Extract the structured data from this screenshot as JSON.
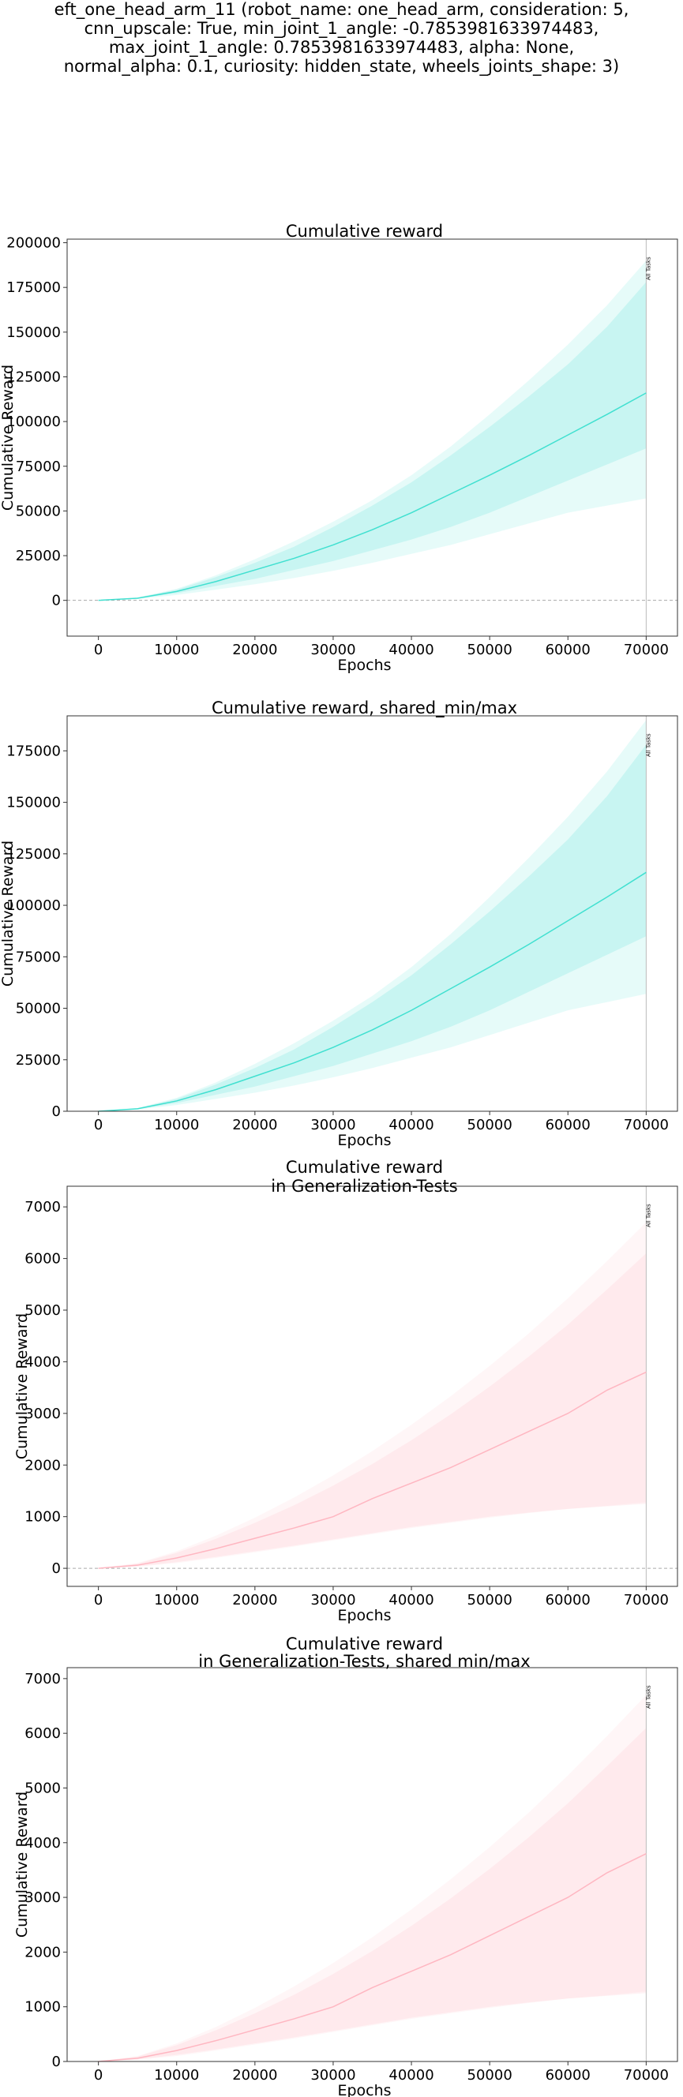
{
  "suptitle_lines": [
    "eft_one_head_arm_11 (robot_name: one_head_arm, consideration: 5,",
    "cnn_upscale: True, min_joint_1_angle: -0.7853981633974483,",
    "max_joint_1_angle: 0.7853981633974483, alpha: None,",
    "normal_alpha: 0.1, curiosity: hidden_state, wheels_joints_shape: 3)"
  ],
  "chart_data": [
    {
      "type": "line",
      "title_lines": [
        "Cumulative reward"
      ],
      "xlabel": "Epochs",
      "ylabel": "Cumulative Reward",
      "xlim": [
        -4000,
        74000
      ],
      "ylim": [
        -20000,
        202000
      ],
      "xticks": [
        0,
        10000,
        20000,
        30000,
        40000,
        50000,
        60000,
        70000
      ],
      "yticks": [
        0,
        25000,
        50000,
        75000,
        100000,
        125000,
        150000,
        175000,
        200000
      ],
      "zero_line": true,
      "vline": {
        "x": 70000,
        "label": "All Tasks"
      },
      "color": "#40E0D0",
      "x": [
        0,
        5000,
        10000,
        15000,
        20000,
        25000,
        30000,
        35000,
        40000,
        45000,
        50000,
        55000,
        60000,
        65000,
        70000
      ],
      "series": [
        {
          "role": "mean",
          "values": [
            0,
            1200,
            5000,
            10500,
            17000,
            23500,
            31000,
            39500,
            49000,
            59500,
            70000,
            81000,
            92500,
            104000,
            116000
          ]
        },
        {
          "role": "inner_low",
          "values": [
            0,
            1000,
            4000,
            8000,
            12000,
            17000,
            22000,
            28000,
            34000,
            41000,
            49000,
            58000,
            67000,
            76000,
            85000
          ]
        },
        {
          "role": "inner_high",
          "values": [
            0,
            1500,
            6000,
            13000,
            21000,
            30000,
            41000,
            53000,
            66000,
            81000,
            97000,
            114000,
            132000,
            153000,
            178000
          ]
        },
        {
          "role": "outer_low",
          "values": [
            0,
            800,
            3000,
            6000,
            9000,
            12500,
            16500,
            21000,
            26000,
            31000,
            37000,
            43000,
            49000,
            53000,
            57000
          ]
        },
        {
          "role": "outer_high",
          "values": [
            0,
            1600,
            6500,
            14000,
            23000,
            33000,
            44000,
            56000,
            70000,
            86000,
            104000,
            123000,
            143000,
            165000,
            190000
          ]
        }
      ]
    },
    {
      "type": "line",
      "title_lines": [
        "Cumulative reward, shared_min/max"
      ],
      "xlabel": "Epochs",
      "ylabel": "Cumulative Reward",
      "xlim": [
        -4000,
        74000
      ],
      "ylim": [
        0,
        192000
      ],
      "xticks": [
        0,
        10000,
        20000,
        30000,
        40000,
        50000,
        60000,
        70000
      ],
      "yticks": [
        0,
        25000,
        50000,
        75000,
        100000,
        125000,
        150000,
        175000
      ],
      "zero_line": false,
      "vline": {
        "x": 70000,
        "label": "All Tasks"
      },
      "color": "#40E0D0",
      "x": [
        0,
        5000,
        10000,
        15000,
        20000,
        25000,
        30000,
        35000,
        40000,
        45000,
        50000,
        55000,
        60000,
        65000,
        70000
      ],
      "series": [
        {
          "role": "mean",
          "values": [
            0,
            1200,
            5000,
            10500,
            17000,
            23500,
            31000,
            39500,
            49000,
            59500,
            70000,
            81000,
            92500,
            104000,
            116000
          ]
        },
        {
          "role": "inner_low",
          "values": [
            0,
            1000,
            4000,
            8000,
            12000,
            17000,
            22000,
            28000,
            34000,
            41000,
            49000,
            58000,
            67000,
            76000,
            85000
          ]
        },
        {
          "role": "inner_high",
          "values": [
            0,
            1500,
            6000,
            13000,
            21000,
            30000,
            41000,
            53000,
            66000,
            81000,
            97000,
            114000,
            132000,
            153000,
            178000
          ]
        },
        {
          "role": "outer_low",
          "values": [
            0,
            800,
            3000,
            6000,
            9000,
            12500,
            16500,
            21000,
            26000,
            31000,
            37000,
            43000,
            49000,
            53000,
            57000
          ]
        },
        {
          "role": "outer_high",
          "values": [
            0,
            1600,
            6500,
            14000,
            23000,
            33000,
            44000,
            56000,
            70000,
            86000,
            104000,
            123000,
            143000,
            165000,
            190000
          ]
        }
      ]
    },
    {
      "type": "line",
      "title_lines": [
        "Cumulative reward",
        "in Generalization-Tests"
      ],
      "xlabel": "Epochs",
      "ylabel": "Cumulative Reward",
      "xlim": [
        -4000,
        74000
      ],
      "ylim": [
        -350,
        7400
      ],
      "xticks": [
        0,
        10000,
        20000,
        30000,
        40000,
        50000,
        60000,
        70000
      ],
      "yticks": [
        0,
        1000,
        2000,
        3000,
        4000,
        5000,
        6000,
        7000
      ],
      "zero_line": true,
      "vline": {
        "x": 70000,
        "label": "All Tasks"
      },
      "color": "#FFB6C1",
      "x": [
        0,
        5000,
        10000,
        15000,
        20000,
        25000,
        30000,
        35000,
        40000,
        45000,
        50000,
        55000,
        60000,
        65000,
        70000
      ],
      "series": [
        {
          "role": "mean",
          "values": [
            0,
            60,
            200,
            380,
            580,
            780,
            1000,
            1350,
            1650,
            1950,
            2300,
            2650,
            3000,
            3450,
            3800
          ]
        },
        {
          "role": "inner_low",
          "values": [
            0,
            40,
            120,
            220,
            330,
            440,
            560,
            680,
            800,
            900,
            1000,
            1080,
            1150,
            1200,
            1250
          ]
        },
        {
          "role": "inner_high",
          "values": [
            0,
            90,
            300,
            570,
            880,
            1220,
            1600,
            2020,
            2480,
            2980,
            3520,
            4100,
            4720,
            5400,
            6100
          ]
        },
        {
          "role": "outer_low",
          "values": [
            0,
            30,
            100,
            200,
            310,
            420,
            540,
            660,
            780,
            880,
            980,
            1070,
            1150,
            1210,
            1280
          ]
        },
        {
          "role": "outer_high",
          "values": [
            0,
            100,
            330,
            630,
            980,
            1370,
            1800,
            2270,
            2780,
            3330,
            3920,
            4550,
            5230,
            5950,
            6700
          ]
        }
      ]
    },
    {
      "type": "line",
      "title_lines": [
        "Cumulative reward",
        "in Generalization-Tests, shared min/max"
      ],
      "xlabel": "Epochs",
      "ylabel": "Cumulative Reward",
      "xlim": [
        -4000,
        74000
      ],
      "ylim": [
        0,
        7200
      ],
      "xticks": [
        0,
        10000,
        20000,
        30000,
        40000,
        50000,
        60000,
        70000
      ],
      "yticks": [
        0,
        1000,
        2000,
        3000,
        4000,
        5000,
        6000,
        7000
      ],
      "zero_line": false,
      "vline": {
        "x": 70000,
        "label": "All Tasks"
      },
      "color": "#FFB6C1",
      "x": [
        0,
        5000,
        10000,
        15000,
        20000,
        25000,
        30000,
        35000,
        40000,
        45000,
        50000,
        55000,
        60000,
        65000,
        70000
      ],
      "series": [
        {
          "role": "mean",
          "values": [
            0,
            60,
            200,
            380,
            580,
            780,
            1000,
            1350,
            1650,
            1950,
            2300,
            2650,
            3000,
            3450,
            3800
          ]
        },
        {
          "role": "inner_low",
          "values": [
            0,
            40,
            120,
            220,
            330,
            440,
            560,
            680,
            800,
            900,
            1000,
            1080,
            1150,
            1200,
            1250
          ]
        },
        {
          "role": "inner_high",
          "values": [
            0,
            90,
            300,
            570,
            880,
            1220,
            1600,
            2020,
            2480,
            2980,
            3520,
            4100,
            4720,
            5400,
            6100
          ]
        },
        {
          "role": "outer_low",
          "values": [
            0,
            30,
            100,
            200,
            310,
            420,
            540,
            660,
            780,
            880,
            980,
            1070,
            1150,
            1210,
            1280
          ]
        },
        {
          "role": "outer_high",
          "values": [
            0,
            100,
            330,
            630,
            980,
            1370,
            1800,
            2270,
            2780,
            3330,
            3920,
            4550,
            5230,
            5950,
            6700
          ]
        }
      ]
    }
  ]
}
